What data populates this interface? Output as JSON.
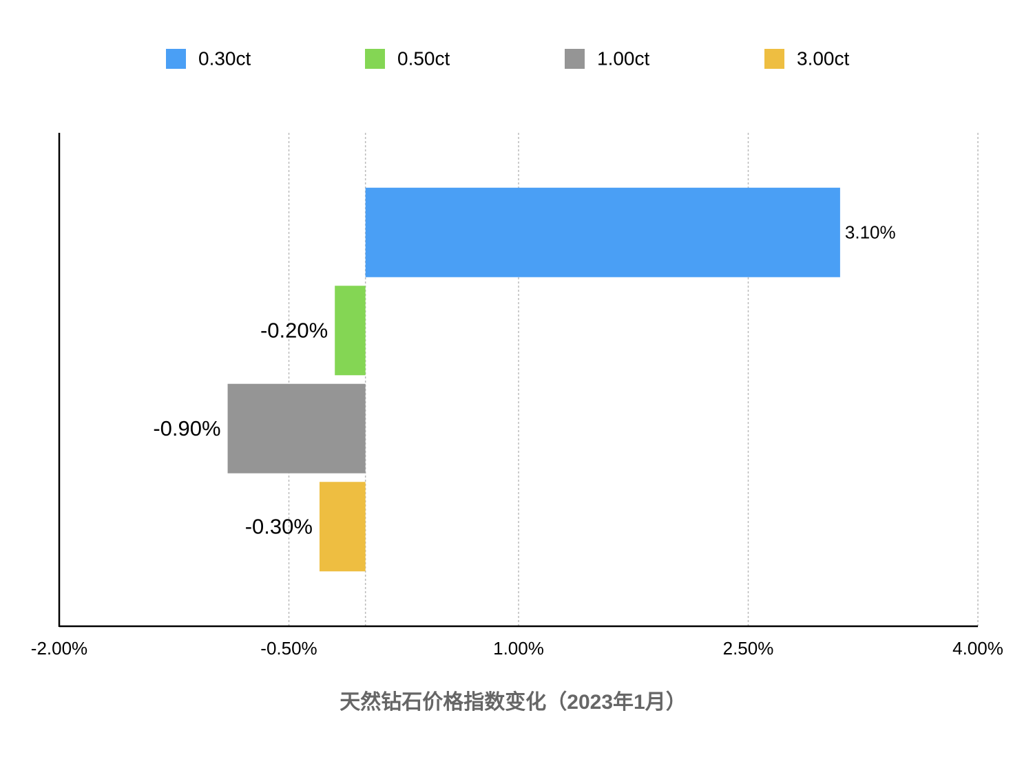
{
  "chart_data": {
    "type": "bar",
    "orientation": "horizontal",
    "x_label": "天然钻石价格指数变化（2023年1月）",
    "categories": [
      null
    ],
    "series": [
      {
        "name": "0.30ct",
        "color": "#4a9ff5",
        "values": [
          3.1
        ],
        "value_labels": [
          "3.10%"
        ]
      },
      {
        "name": "0.50ct",
        "color": "#84d654",
        "values": [
          -0.2
        ],
        "value_labels": [
          "-0.20%"
        ]
      },
      {
        "name": "1.00ct",
        "color": "#959595",
        "values": [
          -0.9
        ],
        "value_labels": [
          "-0.90%"
        ]
      },
      {
        "name": "3.00ct",
        "color": "#eebe41",
        "values": [
          -0.3
        ],
        "value_labels": [
          "-0.30%"
        ]
      }
    ],
    "xlim": [
      -2,
      4
    ],
    "xticks": [
      {
        "value": -2,
        "label": "-2.00%"
      },
      {
        "value": -0.5,
        "label": "-0.50%"
      },
      {
        "value": 1,
        "label": "1.00%"
      },
      {
        "value": 2.5,
        "label": "2.50%"
      },
      {
        "value": 4,
        "label": "4.00%"
      }
    ],
    "grid": true,
    "legend": "top"
  }
}
